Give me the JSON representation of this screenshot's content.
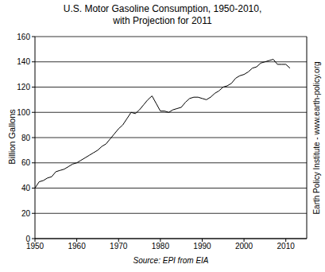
{
  "chart_data": {
    "type": "line",
    "title": "U.S. Motor Gasoline Consumption, 1950-2010,",
    "subtitle": "with Projection for 2011",
    "y_label": "Billion Gallons",
    "source": "Source: EPI from EIA",
    "credit": "Earth Policy Institute - www.earth-policy.org",
    "x": [
      1950,
      1951,
      1952,
      1953,
      1954,
      1955,
      1956,
      1957,
      1958,
      1959,
      1960,
      1961,
      1962,
      1963,
      1964,
      1965,
      1966,
      1967,
      1968,
      1969,
      1970,
      1971,
      1972,
      1973,
      1974,
      1975,
      1976,
      1977,
      1978,
      1979,
      1980,
      1981,
      1982,
      1983,
      1984,
      1985,
      1986,
      1987,
      1988,
      1989,
      1990,
      1991,
      1992,
      1993,
      1994,
      1995,
      1996,
      1997,
      1998,
      1999,
      2000,
      2001,
      2002,
      2003,
      2004,
      2005,
      2006,
      2007,
      2008,
      2009,
      2010,
      2011
    ],
    "values": [
      40,
      45,
      46,
      48,
      49,
      53,
      54,
      55,
      57,
      59,
      60,
      62,
      64,
      66,
      68,
      70,
      73,
      75,
      79,
      83,
      87,
      90,
      95,
      100,
      99,
      102,
      106,
      110,
      113,
      107,
      101,
      101,
      100,
      102,
      103,
      104,
      108,
      111,
      112,
      112,
      111,
      110,
      112,
      115,
      117,
      120,
      121,
      123,
      127,
      129,
      130,
      132,
      135,
      136,
      139,
      140,
      141,
      142,
      138,
      138,
      138,
      135
    ],
    "color": "#000000",
    "xlim": [
      1950,
      2015
    ],
    "xticks": [
      1950,
      1960,
      1970,
      1980,
      1990,
      2000,
      2010
    ],
    "ylim": [
      0,
      160
    ],
    "yticks": [
      0,
      20,
      40,
      60,
      80,
      100,
      120,
      140,
      160
    ],
    "grid": true
  }
}
